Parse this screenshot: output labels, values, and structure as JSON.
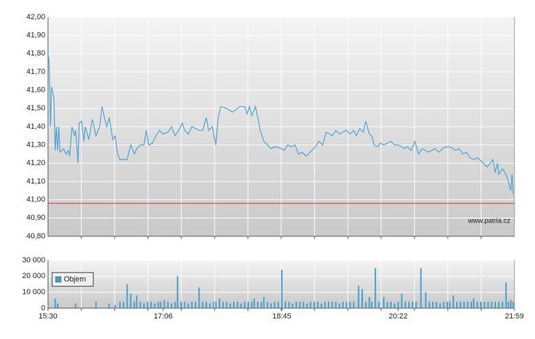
{
  "chart_data": [
    {
      "type": "line",
      "xlim": [
        930,
        1319
      ],
      "ylim": [
        40.8,
        42.0
      ],
      "yticks": [
        {
          "value": 40.8,
          "label": "40,80"
        },
        {
          "value": 40.9,
          "label": "40,90"
        },
        {
          "value": 41.0,
          "label": "41,00"
        },
        {
          "value": 41.1,
          "label": "41,10"
        },
        {
          "value": 41.2,
          "label": "41,20"
        },
        {
          "value": 41.3,
          "label": "41,30"
        },
        {
          "value": 41.4,
          "label": "41,40"
        },
        {
          "value": 41.5,
          "label": "41,50"
        },
        {
          "value": 41.6,
          "label": "41,60"
        },
        {
          "value": 41.7,
          "label": "41,70"
        },
        {
          "value": 41.8,
          "label": "41,80"
        },
        {
          "value": 41.9,
          "label": "41,90"
        },
        {
          "value": 42.0,
          "label": "42,00"
        }
      ],
      "grid": true,
      "reference_line": {
        "value": 40.98,
        "color": "#cc3333"
      },
      "annotation": "www.patria.cz",
      "color": "#4aa3d0",
      "x": [
        930,
        931,
        932,
        933,
        935,
        936,
        937,
        938,
        939,
        940,
        943,
        945,
        947,
        948,
        950,
        952,
        953,
        955,
        956,
        958,
        960,
        961,
        964,
        967,
        970,
        973,
        975,
        977,
        979,
        981,
        984,
        986,
        988,
        990,
        993,
        996,
        999,
        1002,
        1004,
        1007,
        1010,
        1012,
        1014,
        1017,
        1020,
        1023,
        1026,
        1030,
        1033,
        1036,
        1039,
        1042,
        1044,
        1047,
        1050,
        1053,
        1056,
        1059,
        1062,
        1064,
        1067,
        1070,
        1072,
        1074,
        1079,
        1084,
        1090,
        1094,
        1096,
        1098,
        1100,
        1103,
        1105,
        1107,
        1110,
        1113,
        1116,
        1119,
        1125,
        1127,
        1130,
        1133,
        1136,
        1139,
        1142,
        1145,
        1147,
        1150,
        1153,
        1156,
        1159,
        1162,
        1165,
        1167,
        1170,
        1173,
        1176,
        1179,
        1182,
        1185,
        1187,
        1190,
        1193,
        1195,
        1198,
        1200,
        1202,
        1205,
        1207,
        1210,
        1213,
        1216,
        1219,
        1222,
        1225,
        1227,
        1230,
        1233,
        1236,
        1239,
        1242,
        1245,
        1247,
        1250,
        1253,
        1256,
        1259,
        1262,
        1265,
        1268,
        1270,
        1273,
        1276,
        1279,
        1282,
        1285,
        1288,
        1290,
        1293,
        1296,
        1299,
        1301,
        1303,
        1305,
        1306,
        1309,
        1311,
        1313,
        1316,
        1317,
        1318
      ],
      "values": [
        41.8,
        41.75,
        41.4,
        41.62,
        41.55,
        41.27,
        41.4,
        41.27,
        41.4,
        41.26,
        41.28,
        41.25,
        41.27,
        41.24,
        41.4,
        41.35,
        41.38,
        41.2,
        41.42,
        41.43,
        41.32,
        41.4,
        41.33,
        41.44,
        41.35,
        41.4,
        41.51,
        41.45,
        41.4,
        41.45,
        41.33,
        41.35,
        41.25,
        41.22,
        41.22,
        41.22,
        41.3,
        41.25,
        41.28,
        41.3,
        41.3,
        41.38,
        41.3,
        41.31,
        41.35,
        41.38,
        41.36,
        41.37,
        41.4,
        41.35,
        41.38,
        41.42,
        41.38,
        41.36,
        41.4,
        41.39,
        41.38,
        41.38,
        41.45,
        41.38,
        41.4,
        41.3,
        41.45,
        41.51,
        41.5,
        41.48,
        41.51,
        41.51,
        41.47,
        41.51,
        41.46,
        41.51,
        41.45,
        41.38,
        41.32,
        41.3,
        41.28,
        41.29,
        41.28,
        41.27,
        41.3,
        41.29,
        41.3,
        41.25,
        41.26,
        41.24,
        41.25,
        41.27,
        41.29,
        41.32,
        41.3,
        41.37,
        41.36,
        41.35,
        41.38,
        41.36,
        41.37,
        41.38,
        41.36,
        41.38,
        41.35,
        41.39,
        41.37,
        41.43,
        41.36,
        41.35,
        41.3,
        41.29,
        41.31,
        41.3,
        41.31,
        41.32,
        41.3,
        41.3,
        41.29,
        41.28,
        41.29,
        41.27,
        41.32,
        41.25,
        41.28,
        41.27,
        41.26,
        41.27,
        41.28,
        41.26,
        41.28,
        41.29,
        41.29,
        41.28,
        41.27,
        41.28,
        41.25,
        41.26,
        41.23,
        41.22,
        41.23,
        41.22,
        41.2,
        41.18,
        41.2,
        41.22,
        41.15,
        41.2,
        41.14,
        41.17,
        41.15,
        41.12,
        41.05,
        41.14,
        41.03
      ]
    },
    {
      "type": "bar",
      "xlim": [
        930,
        1319
      ],
      "ylim": [
        0,
        30000
      ],
      "yticks": [
        0,
        {
          "value": 10000,
          "label": "10 000"
        },
        {
          "value": 20000,
          "label": "20 000"
        },
        {
          "value": 30000,
          "label": "30 000"
        }
      ],
      "xticks": [
        {
          "value": 930,
          "label": "15:30"
        },
        {
          "value": 1026,
          "label": "17:06"
        },
        {
          "value": 1125,
          "label": "18:45"
        },
        {
          "value": 1222,
          "label": "20:22"
        },
        {
          "value": 1319,
          "label": "21:59"
        }
      ],
      "grid": true,
      "legend": "top-left",
      "series": [
        {
          "name": "Objem",
          "color": "#3fa0cf",
          "x": [
            936,
            938,
            953,
            970,
            981,
            986,
            990,
            993,
            996,
            999,
            1002,
            1004,
            1007,
            1010,
            1013,
            1016,
            1019,
            1022,
            1024,
            1027,
            1030,
            1033,
            1036,
            1038,
            1041,
            1044,
            1047,
            1050,
            1053,
            1056,
            1059,
            1062,
            1065,
            1068,
            1070,
            1073,
            1076,
            1079,
            1082,
            1085,
            1088,
            1091,
            1094,
            1097,
            1100,
            1102,
            1105,
            1108,
            1110,
            1113,
            1116,
            1119,
            1122,
            1125,
            1128,
            1131,
            1134,
            1137,
            1140,
            1143,
            1146,
            1149,
            1152,
            1155,
            1158,
            1161,
            1164,
            1167,
            1170,
            1173,
            1176,
            1179,
            1182,
            1185,
            1189,
            1192,
            1195,
            1198,
            1200,
            1203,
            1206,
            1210,
            1213,
            1216,
            1219,
            1222,
            1225,
            1228,
            1231,
            1234,
            1237,
            1241,
            1245,
            1248,
            1251,
            1254,
            1257,
            1260,
            1263,
            1265,
            1268,
            1271,
            1274,
            1277,
            1280,
            1283,
            1285,
            1288,
            1291,
            1294,
            1297,
            1300,
            1303,
            1306,
            1309,
            1312,
            1314,
            1316,
            1318
          ],
          "values": [
            6000,
            3000,
            3000,
            4000,
            3000,
            2000,
            4000,
            4000,
            15000,
            9000,
            4000,
            8000,
            4000,
            3000,
            4000,
            4000,
            3000,
            4000,
            4000,
            5000,
            4000,
            3000,
            4000,
            20000,
            4000,
            4000,
            3000,
            4000,
            4000,
            13000,
            4000,
            4000,
            3000,
            4000,
            4000,
            6000,
            4000,
            4000,
            3000,
            4000,
            4000,
            3000,
            4000,
            4000,
            4000,
            6000,
            4000,
            4000,
            7000,
            4000,
            3000,
            4000,
            4000,
            24000,
            4000,
            4000,
            3000,
            4000,
            4000,
            4000,
            3000,
            4000,
            4000,
            4000,
            3000,
            4000,
            4000,
            4000,
            4000,
            3000,
            4000,
            4000,
            4000,
            4000,
            14000,
            12000,
            4000,
            7000,
            4000,
            25000,
            4000,
            7000,
            4000,
            4000,
            3000,
            4000,
            9000,
            4000,
            4000,
            4000,
            4000,
            25000,
            10000,
            4000,
            4000,
            4000,
            3000,
            4000,
            4000,
            4000,
            8000,
            4000,
            4000,
            4000,
            4000,
            4000,
            6000,
            4000,
            4000,
            4000,
            4000,
            4000,
            4000,
            4000,
            4000,
            16000,
            4000,
            5000,
            4000
          ]
        }
      ]
    }
  ]
}
